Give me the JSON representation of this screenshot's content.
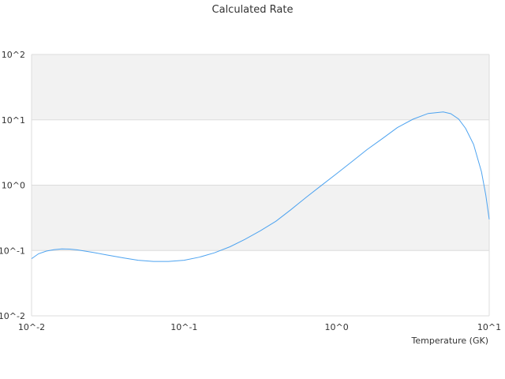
{
  "chart_data": {
    "type": "line",
    "title": "Calculated Rate",
    "xlabel": "Temperature (GK)",
    "ylabel": "",
    "x_scale": "log",
    "y_scale": "log",
    "xlim": [
      0.01,
      10
    ],
    "ylim": [
      0.01,
      100
    ],
    "x_ticks": [
      {
        "value": 0.01,
        "label": "10^-2"
      },
      {
        "value": 0.1,
        "label": "10^-1"
      },
      {
        "value": 1,
        "label": "10^0"
      },
      {
        "value": 10,
        "label": "10^1"
      }
    ],
    "y_ticks": [
      {
        "value": 100,
        "label": "10^2"
      },
      {
        "value": 10,
        "label": "10^1"
      },
      {
        "value": 1,
        "label": "10^0"
      },
      {
        "value": 0.1,
        "label": "10^-1"
      },
      {
        "value": 0.01,
        "label": "10^-2"
      }
    ],
    "grid": true,
    "band_colors": [
      "#f2f2f2",
      "#ffffff"
    ],
    "series": [
      {
        "color": "#4da3f0",
        "points": [
          {
            "x": 0.01,
            "y": 0.075
          },
          {
            "x": 0.0111,
            "y": 0.089
          },
          {
            "x": 0.0125,
            "y": 0.098
          },
          {
            "x": 0.014,
            "y": 0.103
          },
          {
            "x": 0.0158,
            "y": 0.106
          },
          {
            "x": 0.0178,
            "y": 0.105
          },
          {
            "x": 0.02,
            "y": 0.102
          },
          {
            "x": 0.025,
            "y": 0.094
          },
          {
            "x": 0.0316,
            "y": 0.085
          },
          {
            "x": 0.04,
            "y": 0.077
          },
          {
            "x": 0.05,
            "y": 0.071
          },
          {
            "x": 0.063,
            "y": 0.068
          },
          {
            "x": 0.079,
            "y": 0.068
          },
          {
            "x": 0.1,
            "y": 0.071
          },
          {
            "x": 0.126,
            "y": 0.079
          },
          {
            "x": 0.158,
            "y": 0.092
          },
          {
            "x": 0.2,
            "y": 0.114
          },
          {
            "x": 0.25,
            "y": 0.148
          },
          {
            "x": 0.316,
            "y": 0.2
          },
          {
            "x": 0.4,
            "y": 0.28
          },
          {
            "x": 0.5,
            "y": 0.42
          },
          {
            "x": 0.63,
            "y": 0.65
          },
          {
            "x": 0.79,
            "y": 0.98
          },
          {
            "x": 1.0,
            "y": 1.5
          },
          {
            "x": 1.26,
            "y": 2.3
          },
          {
            "x": 1.58,
            "y": 3.5
          },
          {
            "x": 2.0,
            "y": 5.2
          },
          {
            "x": 2.5,
            "y": 7.6
          },
          {
            "x": 3.16,
            "y": 10.2
          },
          {
            "x": 3.98,
            "y": 12.5
          },
          {
            "x": 5.0,
            "y": 13.2
          },
          {
            "x": 5.6,
            "y": 12.4
          },
          {
            "x": 6.3,
            "y": 10.3
          },
          {
            "x": 7.0,
            "y": 7.4
          },
          {
            "x": 7.9,
            "y": 4.2
          },
          {
            "x": 8.9,
            "y": 1.6
          },
          {
            "x": 9.5,
            "y": 0.7
          },
          {
            "x": 10.0,
            "y": 0.3
          }
        ]
      }
    ]
  }
}
